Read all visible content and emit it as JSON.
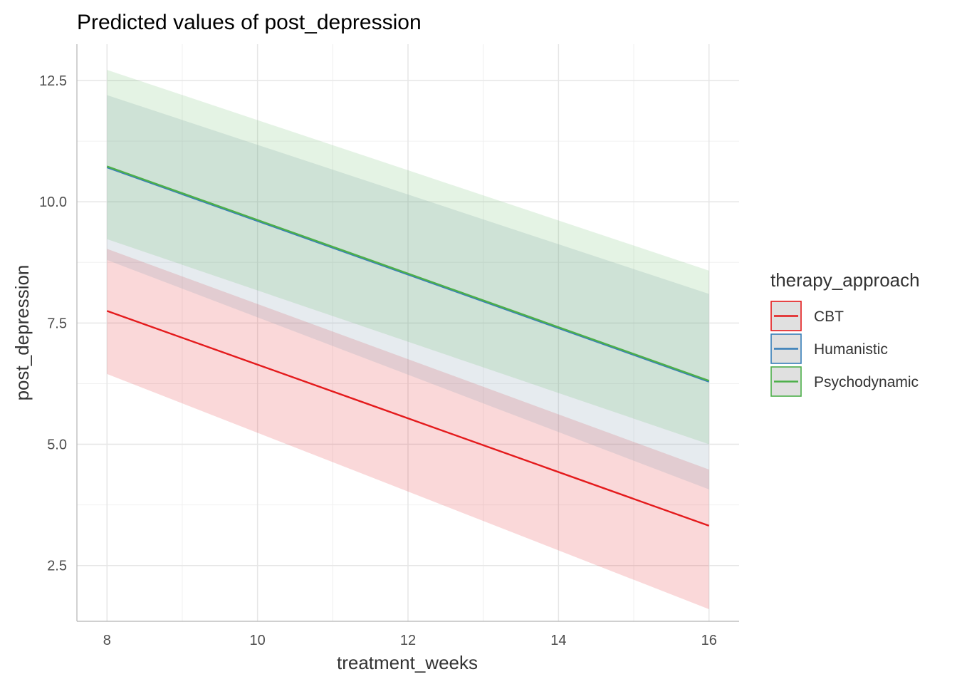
{
  "chart_data": {
    "type": "line",
    "title": "Predicted values of post_depression",
    "xlabel": "treatment_weeks",
    "ylabel": "post_depression",
    "x": [
      8,
      16
    ],
    "xlim": [
      7.6,
      16.4
    ],
    "ylim": [
      1.35,
      13.25
    ],
    "x_ticks": [
      8,
      10,
      12,
      14,
      16
    ],
    "x_tick_labels": [
      "8",
      "10",
      "12",
      "14",
      "16"
    ],
    "y_ticks": [
      2.5,
      5.0,
      7.5,
      10.0,
      12.5
    ],
    "y_tick_labels": [
      "2.5",
      "5.0",
      "7.5",
      "10.0",
      "12.5"
    ],
    "grid": true,
    "legend": {
      "title": "therapy_approach",
      "position": "right"
    },
    "series": [
      {
        "name": "CBT",
        "color": "#E41A1C",
        "fill": "#E41A1C",
        "values": [
          7.75,
          3.32
        ],
        "lower": [
          6.45,
          1.6
        ],
        "upper": [
          9.03,
          4.48
        ]
      },
      {
        "name": "Humanistic",
        "color": "#377EB8",
        "fill": "#8FA6B4",
        "values": [
          10.71,
          6.29
        ],
        "lower": [
          8.8,
          4.07
        ],
        "upper": [
          12.2,
          8.1
        ]
      },
      {
        "name": "Psychodynamic",
        "color": "#4DAF4A",
        "fill": "#4DAF4A",
        "values": [
          10.73,
          6.31
        ],
        "lower": [
          9.23,
          5.0
        ],
        "upper": [
          12.72,
          8.58
        ]
      }
    ]
  }
}
